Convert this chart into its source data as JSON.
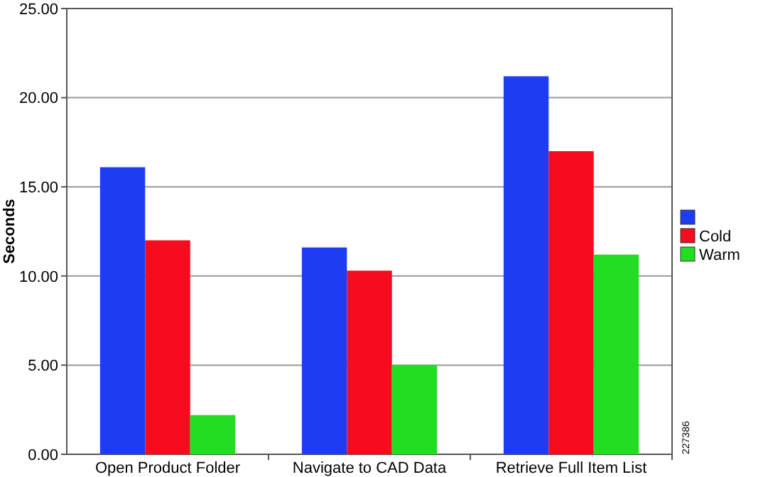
{
  "chart_data": {
    "type": "bar",
    "ylabel": "Seconds",
    "categories": [
      "Open Product Folder",
      "Navigate to CAD Data",
      "Retrieve Full Item List"
    ],
    "series": [
      {
        "color": "#1f3cf5",
        "values": [
          16.1,
          11.6,
          21.2
        ]
      },
      {
        "name": "Cold",
        "color": "#f50c1f",
        "values": [
          12.0,
          10.3,
          17.0
        ]
      },
      {
        "name": "Warm",
        "color": "#22dd22",
        "values": [
          2.2,
          5.0,
          11.2
        ]
      }
    ],
    "ylim": [
      0,
      25
    ],
    "yticks": [
      {
        "value": 0,
        "label": "0.00"
      },
      {
        "value": 5,
        "label": "5.00"
      },
      {
        "value": 10,
        "label": "10.00"
      },
      {
        "value": 15,
        "label": "15.00"
      },
      {
        "value": 20,
        "label": "20.00"
      },
      {
        "value": 25,
        "label": "25.00"
      }
    ],
    "grid": "y",
    "legend": "right",
    "annotations": [
      "227386"
    ]
  }
}
